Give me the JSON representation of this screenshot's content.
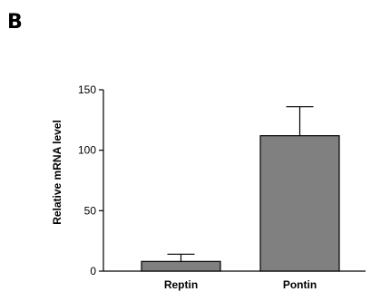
{
  "panel_label": "B",
  "chart_data": {
    "type": "bar",
    "categories": [
      "Reptin",
      "Pontin"
    ],
    "values": [
      8,
      112
    ],
    "error_upper": [
      6,
      24
    ],
    "ylabel": "Relative mRNA level",
    "xlabel": "",
    "ylim": [
      0,
      150
    ],
    "yticks": [
      0,
      50,
      100,
      150
    ],
    "grid": false,
    "bar_color": "#808080"
  }
}
